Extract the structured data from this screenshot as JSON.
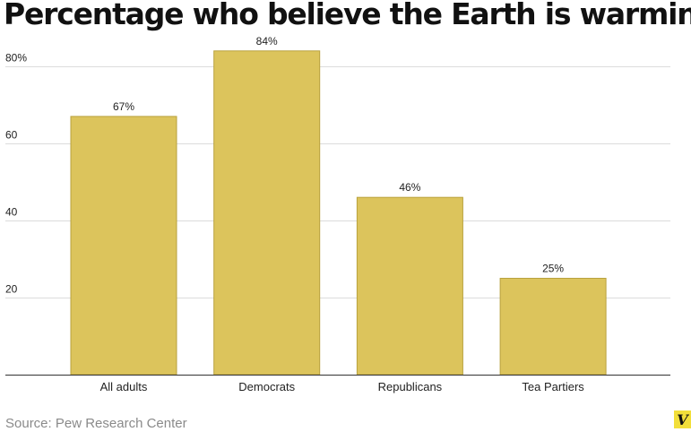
{
  "chart_data": {
    "type": "bar",
    "title": "Percentage who believe the Earth is warming",
    "categories": [
      "All adults",
      "Democrats",
      "Republicans",
      "Tea Partiers"
    ],
    "values": [
      67,
      84,
      46,
      25
    ],
    "data_labels": [
      "67%",
      "84%",
      "46%",
      "25%"
    ],
    "y_ticks": [
      20,
      40,
      60,
      80
    ],
    "y_tick_labels": [
      "20",
      "40",
      "60",
      "80%"
    ],
    "ylim": [
      0,
      86
    ],
    "grid": true,
    "bar_color": "#dcc45c"
  },
  "source": "Source: Pew Research Center",
  "logo_text": "V"
}
